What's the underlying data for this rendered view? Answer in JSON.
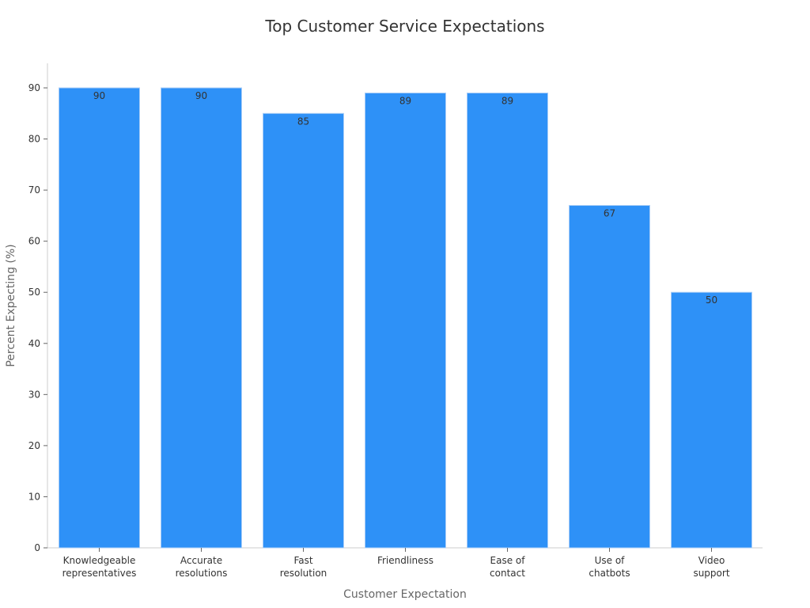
{
  "chart_data": {
    "type": "bar",
    "title": "Top Customer Service Expectations",
    "xlabel": "Customer Expectation",
    "ylabel": "Percent Expecting (%)",
    "categories": [
      [
        "Knowledgeable",
        "representatives"
      ],
      [
        "Accurate",
        "resolutions"
      ],
      [
        "Fast",
        "resolution"
      ],
      [
        "Friendliness"
      ],
      [
        "Ease of",
        "contact"
      ],
      [
        "Use of",
        "chatbots"
      ],
      [
        "Video",
        "support"
      ]
    ],
    "values": [
      90,
      90,
      85,
      89,
      89,
      67,
      50
    ],
    "ylim": [
      0,
      95
    ],
    "yticks": [
      0,
      10,
      20,
      30,
      40,
      50,
      60,
      70,
      80,
      90
    ],
    "grid": false,
    "bar_color": "#2e91f7",
    "bar_edge_color": "#a9cdf7"
  }
}
